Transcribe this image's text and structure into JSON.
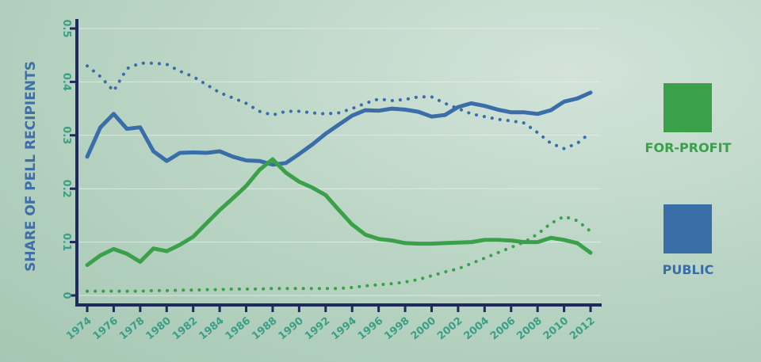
{
  "chart_data": {
    "type": "line",
    "title": "",
    "xlabel": "",
    "ylabel": "SHARE OF PELL RECIPIENTS",
    "ylim": [
      0,
      0.5
    ],
    "xlim": [
      1974,
      2012
    ],
    "yticks": [
      "0",
      "0.1",
      "0.2",
      "0.3",
      "0.4",
      "0.5"
    ],
    "xticks": [
      "1974",
      "1976",
      "1978",
      "1980",
      "1982",
      "1984",
      "1986",
      "1988",
      "1990",
      "1992",
      "1994",
      "1996",
      "1998",
      "2000",
      "2002",
      "2004",
      "2006",
      "2008",
      "2010",
      "2012"
    ],
    "grid": true,
    "legend_position": "right",
    "x": [
      1974,
      1975,
      1976,
      1977,
      1978,
      1979,
      1980,
      1981,
      1982,
      1983,
      1984,
      1985,
      1986,
      1987,
      1988,
      1989,
      1990,
      1991,
      1992,
      1993,
      1994,
      1995,
      1996,
      1997,
      1998,
      1999,
      2000,
      2001,
      2002,
      2003,
      2004,
      2005,
      2006,
      2007,
      2008,
      2009,
      2010,
      2011,
      2012
    ],
    "series": [
      {
        "name": "PUBLIC",
        "style": "solid",
        "color": "#3a6ea8",
        "values": [
          0.26,
          0.315,
          0.34,
          0.312,
          0.315,
          0.27,
          0.252,
          0.267,
          0.268,
          0.267,
          0.27,
          0.26,
          0.253,
          0.252,
          0.245,
          0.248,
          0.265,
          0.283,
          0.303,
          0.32,
          0.337,
          0.347,
          0.346,
          0.35,
          0.348,
          0.344,
          0.335,
          0.338,
          0.353,
          0.36,
          0.355,
          0.348,
          0.343,
          0.343,
          0.34,
          0.347,
          0.363,
          0.369,
          0.38
        ]
      },
      {
        "style": "dotted",
        "color": "#3a6ea8",
        "values": [
          0.43,
          0.41,
          0.383,
          0.425,
          0.435,
          0.435,
          0.433,
          0.42,
          0.41,
          0.395,
          0.38,
          0.37,
          0.36,
          0.345,
          0.338,
          0.345,
          0.345,
          0.342,
          0.34,
          0.342,
          0.35,
          0.36,
          0.368,
          0.365,
          0.367,
          0.372,
          0.372,
          0.36,
          0.35,
          0.34,
          0.335,
          0.33,
          0.327,
          0.323,
          0.305,
          0.285,
          0.275,
          0.285,
          0.305
        ]
      },
      {
        "name": "FOR-PROFIT",
        "style": "solid",
        "color": "#3aa14a",
        "values": [
          0.057,
          0.075,
          0.087,
          0.078,
          0.063,
          0.088,
          0.083,
          0.095,
          0.11,
          0.135,
          0.16,
          0.182,
          0.205,
          0.235,
          0.255,
          0.23,
          0.213,
          0.202,
          0.188,
          0.16,
          0.133,
          0.114,
          0.106,
          0.103,
          0.098,
          0.097,
          0.097,
          0.098,
          0.099,
          0.1,
          0.104,
          0.104,
          0.103,
          0.1,
          0.1,
          0.108,
          0.104,
          0.098,
          0.08
        ]
      },
      {
        "style": "dotted",
        "color": "#3aa14a",
        "values": [
          0.008,
          0.008,
          0.008,
          0.008,
          0.008,
          0.009,
          0.009,
          0.01,
          0.01,
          0.011,
          0.011,
          0.012,
          0.012,
          0.012,
          0.013,
          0.013,
          0.013,
          0.013,
          0.013,
          0.013,
          0.015,
          0.018,
          0.02,
          0.022,
          0.025,
          0.03,
          0.037,
          0.044,
          0.05,
          0.06,
          0.07,
          0.08,
          0.09,
          0.1,
          0.115,
          0.135,
          0.148,
          0.14,
          0.12
        ]
      }
    ]
  },
  "legend": [
    {
      "label": "FOR-PROFIT",
      "color": "#3aa14a"
    },
    {
      "label": "PUBLIC",
      "color": "#3a6ea8"
    }
  ],
  "colors": {
    "axis": "#1f2a5c",
    "tick_label": "#3a9f86",
    "gridline": "#e6efe9"
  }
}
